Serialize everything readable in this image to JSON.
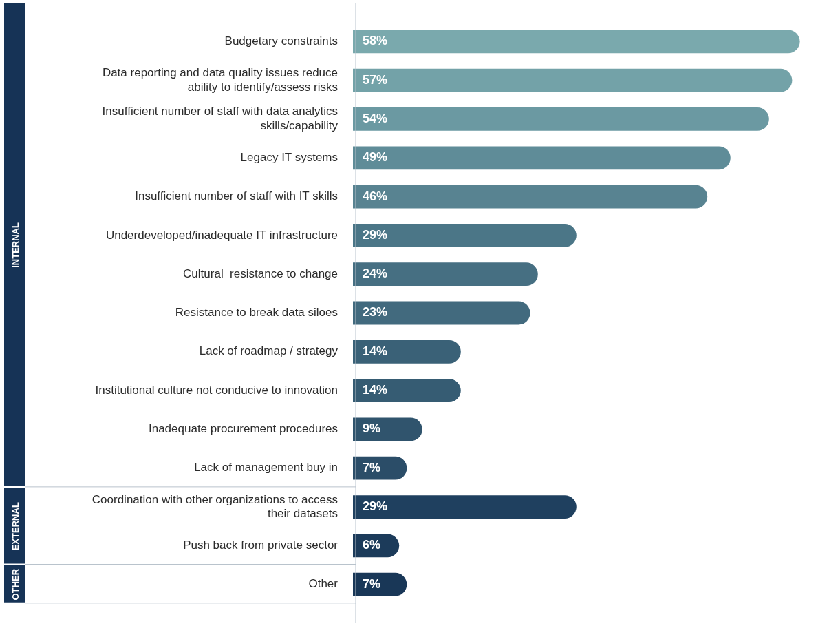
{
  "chart_data": {
    "type": "bar",
    "orientation": "horizontal",
    "categories": [
      "Budgetary constraints",
      "Data reporting and data quality issues reduce ability to identify/assess risks",
      "Insufficient number of staff with data analytics skills/capability",
      "Legacy IT systems",
      "Insufficient number of staff with IT skills",
      "Underdeveloped/inadequate IT infrastructure",
      "Cultural  resistance to change",
      "Resistance to break data siloes",
      "Lack of roadmap / strategy",
      "Institutional culture not conducive to innovation",
      "Inadequate procurement procedures",
      "Lack of management buy in",
      "Coordination with other organizations to access their datasets",
      "Push back from private sector",
      "Other"
    ],
    "values": [
      58,
      57,
      54,
      49,
      46,
      29,
      24,
      23,
      14,
      14,
      9,
      7,
      29,
      6,
      7
    ],
    "value_labels": [
      "58%",
      "57%",
      "54%",
      "49%",
      "46%",
      "29%",
      "24%",
      "23%",
      "14%",
      "14%",
      "9%",
      "7%",
      "29%",
      "6%",
      "7%"
    ],
    "colors": [
      "#7aa9ad",
      "#73a2a8",
      "#6b99a2",
      "#5f8c98",
      "#588391",
      "#4b7687",
      "#466f82",
      "#426a7e",
      "#3a6177",
      "#365c73",
      "#30546d",
      "#2b4d68",
      "#1f405f",
      "#1c3b5a",
      "#193757"
    ],
    "annotations": [
      "INTERNAL",
      "EXTERNAL",
      "OTHER"
    ],
    "grid": false,
    "legend": false
  }
}
